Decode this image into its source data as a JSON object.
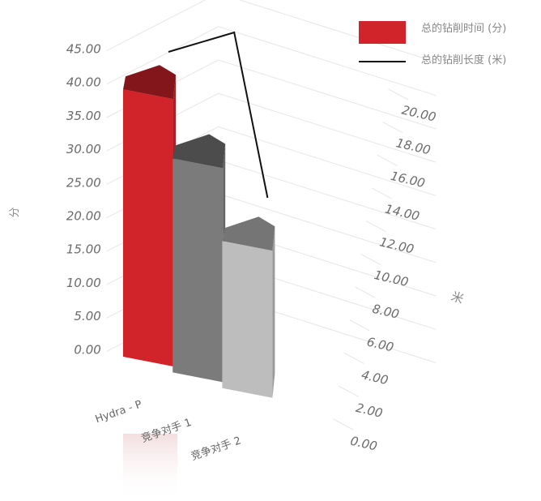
{
  "chart_data": {
    "type": "bar",
    "title": "",
    "categories": [
      "Hydra - P",
      "竞争对手 1",
      "竞争对手 2"
    ],
    "series": [
      {
        "name": "总的钻削时间 (分)",
        "type": "bar",
        "axis": "left",
        "values": [
          40.0,
          32.0,
          22.0
        ],
        "colors": [
          "#d1232a",
          "#7b7b7b",
          "#bdbdbd"
        ]
      },
      {
        "name": "总的钻削长度 (米)",
        "type": "line",
        "axis": "right",
        "values": [
          19.0,
          20.0,
          11.5
        ],
        "color": "#111111"
      }
    ],
    "y_left": {
      "label": "分",
      "range": [
        0,
        45
      ],
      "ticks": [
        "0.00",
        "5.00",
        "10.00",
        "15.00",
        "20.00",
        "25.00",
        "30.00",
        "35.00",
        "40.00",
        "45.00"
      ]
    },
    "y_right": {
      "label": "米",
      "range": [
        0,
        20
      ],
      "ticks": [
        "0.00",
        "2.00",
        "4.00",
        "6.00",
        "8.00",
        "10.00",
        "12.00",
        "14.00",
        "16.00",
        "18.00",
        "20.00"
      ]
    },
    "grid": true,
    "legend_position": "top-right",
    "view": "3d"
  }
}
